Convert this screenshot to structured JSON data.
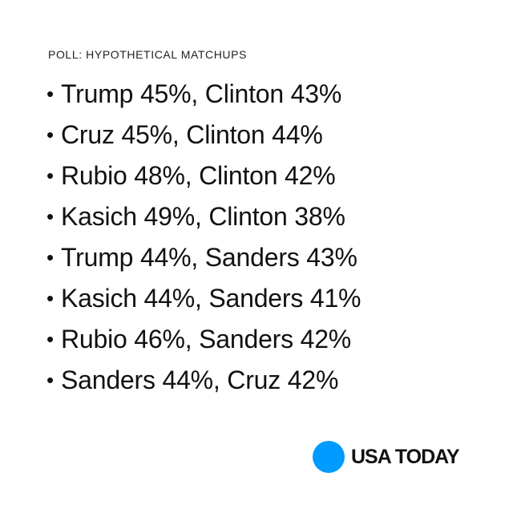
{
  "heading": "POLL: HYPOTHETICAL MATCHUPS",
  "bullet": "•",
  "matchups": [
    "Trump 45%, Clinton 43%",
    "Cruz 45%, Clinton 44%",
    "Rubio 48%, Clinton 42%",
    "Kasich 49%, Clinton 38%",
    "Trump 44%, Sanders 43%",
    "Kasich 44%, Sanders 41%",
    "Rubio 46%, Sanders 42%",
    "Sanders 44%, Cruz 42%"
  ],
  "logo": {
    "text": "USA TODAY",
    "dot_color": "#009bff"
  }
}
